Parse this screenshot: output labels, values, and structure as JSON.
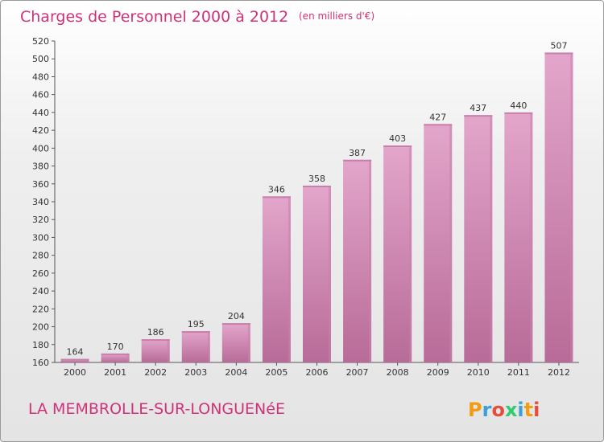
{
  "chart_data": {
    "type": "bar",
    "title": "Charges de Personnel 2000 à 2012",
    "subtitle": "(en milliers d'€)",
    "categories": [
      "2000",
      "2001",
      "2002",
      "2003",
      "2004",
      "2005",
      "2006",
      "2007",
      "2008",
      "2009",
      "2010",
      "2011",
      "2012"
    ],
    "values": [
      164,
      170,
      186,
      195,
      204,
      346,
      358,
      387,
      403,
      427,
      437,
      440,
      507
    ],
    "ylim": [
      160,
      520
    ],
    "yticks": [
      160,
      180,
      200,
      220,
      240,
      260,
      280,
      300,
      320,
      340,
      360,
      380,
      400,
      420,
      440,
      460,
      480,
      500,
      520
    ],
    "grid": false,
    "colors": {
      "bar_top": "#e3a6cb",
      "bar_bottom": "#b86b98",
      "bar_side": "#c97fab",
      "text_accent": "#d0327a"
    }
  },
  "footer": {
    "location": "LA MEMBROLLE-SUR-LONGUENéE",
    "logo": {
      "text": "Proxiti",
      "letters": [
        {
          "ch": "P",
          "color": "#f39c12"
        },
        {
          "ch": "r",
          "color": "#3aa0d8"
        },
        {
          "ch": "o",
          "color": "#e74c3c"
        },
        {
          "ch": "x",
          "color": "#2ecc71"
        },
        {
          "ch": "i",
          "color": "#3aa0d8"
        },
        {
          "ch": "t",
          "color": "#f39c12"
        },
        {
          "ch": "i",
          "color": "#e74c3c"
        }
      ]
    }
  }
}
